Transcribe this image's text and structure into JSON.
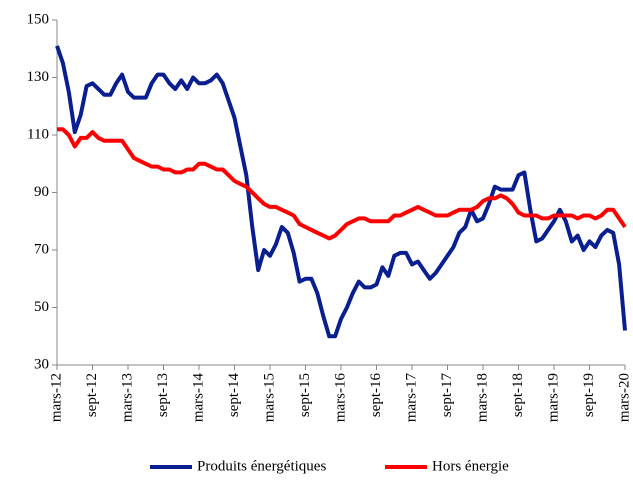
{
  "chart_data": {
    "type": "line",
    "categories": [
      "mars-12",
      null,
      null,
      null,
      null,
      null,
      "sept-12",
      null,
      null,
      null,
      null,
      null,
      "mars-13",
      null,
      null,
      null,
      null,
      null,
      "sept-13",
      null,
      null,
      null,
      null,
      null,
      "mars-14",
      null,
      null,
      null,
      null,
      null,
      "sept-14",
      null,
      null,
      null,
      null,
      null,
      "mars-15",
      null,
      null,
      null,
      null,
      null,
      "sept-15",
      null,
      null,
      null,
      null,
      null,
      "mars-16",
      null,
      null,
      null,
      null,
      null,
      "sept-16",
      null,
      null,
      null,
      null,
      null,
      "mars-17",
      null,
      null,
      null,
      null,
      null,
      "sept-17",
      null,
      null,
      null,
      null,
      null,
      "mars-18",
      null,
      null,
      null,
      null,
      null,
      "sept-18",
      null,
      null,
      null,
      null,
      null,
      "mars-19",
      null,
      null,
      null,
      null,
      null,
      "sept-19",
      null,
      null,
      null,
      null,
      null,
      "mars-20"
    ],
    "series": [
      {
        "name": "Produits énergétiques",
        "color": "#0a1f8f",
        "values": [
          141,
          135,
          125,
          111,
          117,
          127,
          128,
          126,
          124,
          124,
          128,
          131,
          125,
          123,
          123,
          123,
          128,
          131,
          131,
          128,
          126,
          129,
          126,
          130,
          128,
          128,
          129,
          131,
          128,
          122,
          116,
          106,
          96,
          78,
          63,
          70,
          68,
          72,
          78,
          76,
          69,
          59,
          60,
          60,
          55,
          47,
          40,
          40,
          46,
          50,
          55,
          59,
          57,
          57,
          58,
          64,
          61,
          68,
          69,
          69,
          65,
          66,
          63,
          60,
          62,
          65,
          68,
          71,
          76,
          78,
          84,
          80,
          81,
          86,
          92,
          91,
          91,
          91,
          96,
          97,
          84,
          73,
          74,
          77,
          80,
          84,
          80,
          73,
          75,
          70,
          73,
          71,
          75,
          77,
          76,
          65,
          42
        ]
      },
      {
        "name": "Hors énergie",
        "color": "#ff0000",
        "values": [
          112,
          112,
          110,
          106,
          109,
          109,
          111,
          109,
          108,
          108,
          108,
          108,
          105,
          102,
          101,
          100,
          99,
          99,
          98,
          98,
          97,
          97,
          98,
          98,
          100,
          100,
          99,
          98,
          98,
          96,
          94,
          93,
          92,
          90,
          88,
          86,
          85,
          85,
          84,
          83,
          82,
          79,
          78,
          77,
          76,
          75,
          74,
          75,
          77,
          79,
          80,
          81,
          81,
          80,
          80,
          80,
          80,
          82,
          82,
          83,
          84,
          85,
          84,
          83,
          82,
          82,
          82,
          83,
          84,
          84,
          84,
          85,
          87,
          88,
          88,
          89,
          88,
          86,
          83,
          82,
          82,
          82,
          81,
          81,
          82,
          82,
          82,
          82,
          81,
          82,
          82,
          81,
          82,
          84,
          84,
          81,
          78
        ]
      }
    ],
    "ylim": [
      30,
      150
    ],
    "yticks": [
      30,
      50,
      70,
      90,
      110,
      130,
      150
    ],
    "grid": false,
    "legend": "bottom"
  }
}
